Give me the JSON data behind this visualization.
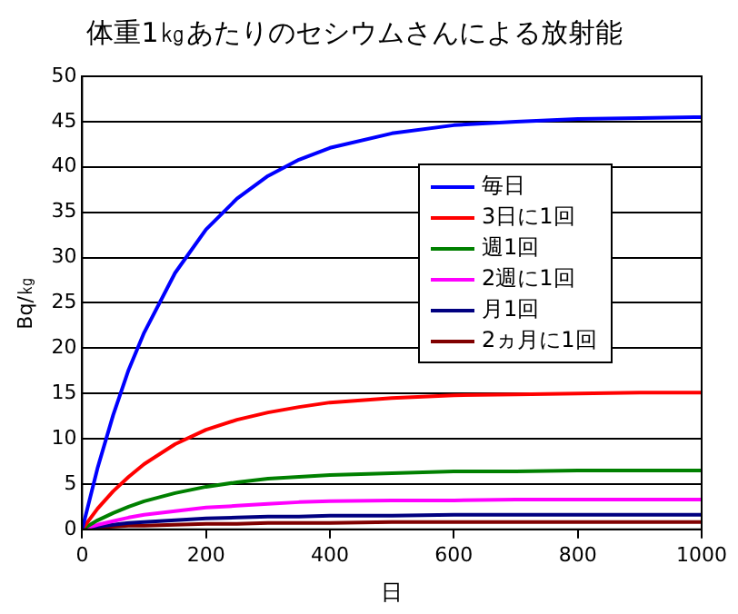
{
  "chart_data": {
    "type": "line",
    "title": "体重1㎏あたりのセシウムさんによる放射能",
    "xlabel": "日",
    "ylabel": "Bq/㎏",
    "x": [
      0,
      25,
      50,
      75,
      100,
      150,
      200,
      250,
      300,
      350,
      400,
      500,
      600,
      700,
      800,
      900,
      1000
    ],
    "series": [
      {
        "name": "毎日",
        "color": "#0000ff",
        "values": [
          0,
          6.8,
          12.6,
          17.6,
          21.7,
          28.3,
          33.1,
          36.5,
          39.0,
          40.8,
          42.1,
          43.7,
          44.6,
          45.0,
          45.3,
          45.4,
          45.5
        ]
      },
      {
        "name": "3日に1回",
        "color": "#ff0000",
        "values": [
          0,
          2.3,
          4.2,
          5.8,
          7.2,
          9.4,
          11.0,
          12.1,
          12.9,
          13.5,
          14.0,
          14.5,
          14.8,
          14.9,
          15.0,
          15.1,
          15.1
        ]
      },
      {
        "name": "週1回",
        "color": "#008000",
        "values": [
          0,
          1.0,
          1.8,
          2.5,
          3.1,
          4.0,
          4.7,
          5.2,
          5.6,
          5.8,
          6.0,
          6.2,
          6.4,
          6.4,
          6.5,
          6.5,
          6.5
        ]
      },
      {
        "name": "2週に1回",
        "color": "#ff00ff",
        "values": [
          0,
          0.5,
          0.9,
          1.3,
          1.6,
          2.0,
          2.4,
          2.6,
          2.8,
          3.0,
          3.1,
          3.2,
          3.2,
          3.3,
          3.3,
          3.3,
          3.3
        ]
      },
      {
        "name": "月1回",
        "color": "#000080",
        "values": [
          0,
          0.3,
          0.5,
          0.7,
          0.8,
          1.0,
          1.2,
          1.3,
          1.4,
          1.4,
          1.5,
          1.5,
          1.6,
          1.6,
          1.6,
          1.6,
          1.6
        ]
      },
      {
        "name": "2ヵ月に1回",
        "color": "#800000",
        "values": [
          0,
          0.2,
          0.3,
          0.4,
          0.4,
          0.5,
          0.6,
          0.6,
          0.7,
          0.7,
          0.7,
          0.8,
          0.8,
          0.8,
          0.8,
          0.8,
          0.8
        ]
      }
    ],
    "xlim": [
      0,
      1000
    ],
    "xticks": [
      0,
      200,
      400,
      600,
      800,
      1000
    ],
    "ylim": [
      0,
      50
    ],
    "yticks": [
      0,
      5,
      10,
      15,
      20,
      25,
      30,
      35,
      40,
      45,
      50
    ],
    "grid": "y",
    "legend": "right",
    "marker": "none",
    "line_style": "solid"
  }
}
